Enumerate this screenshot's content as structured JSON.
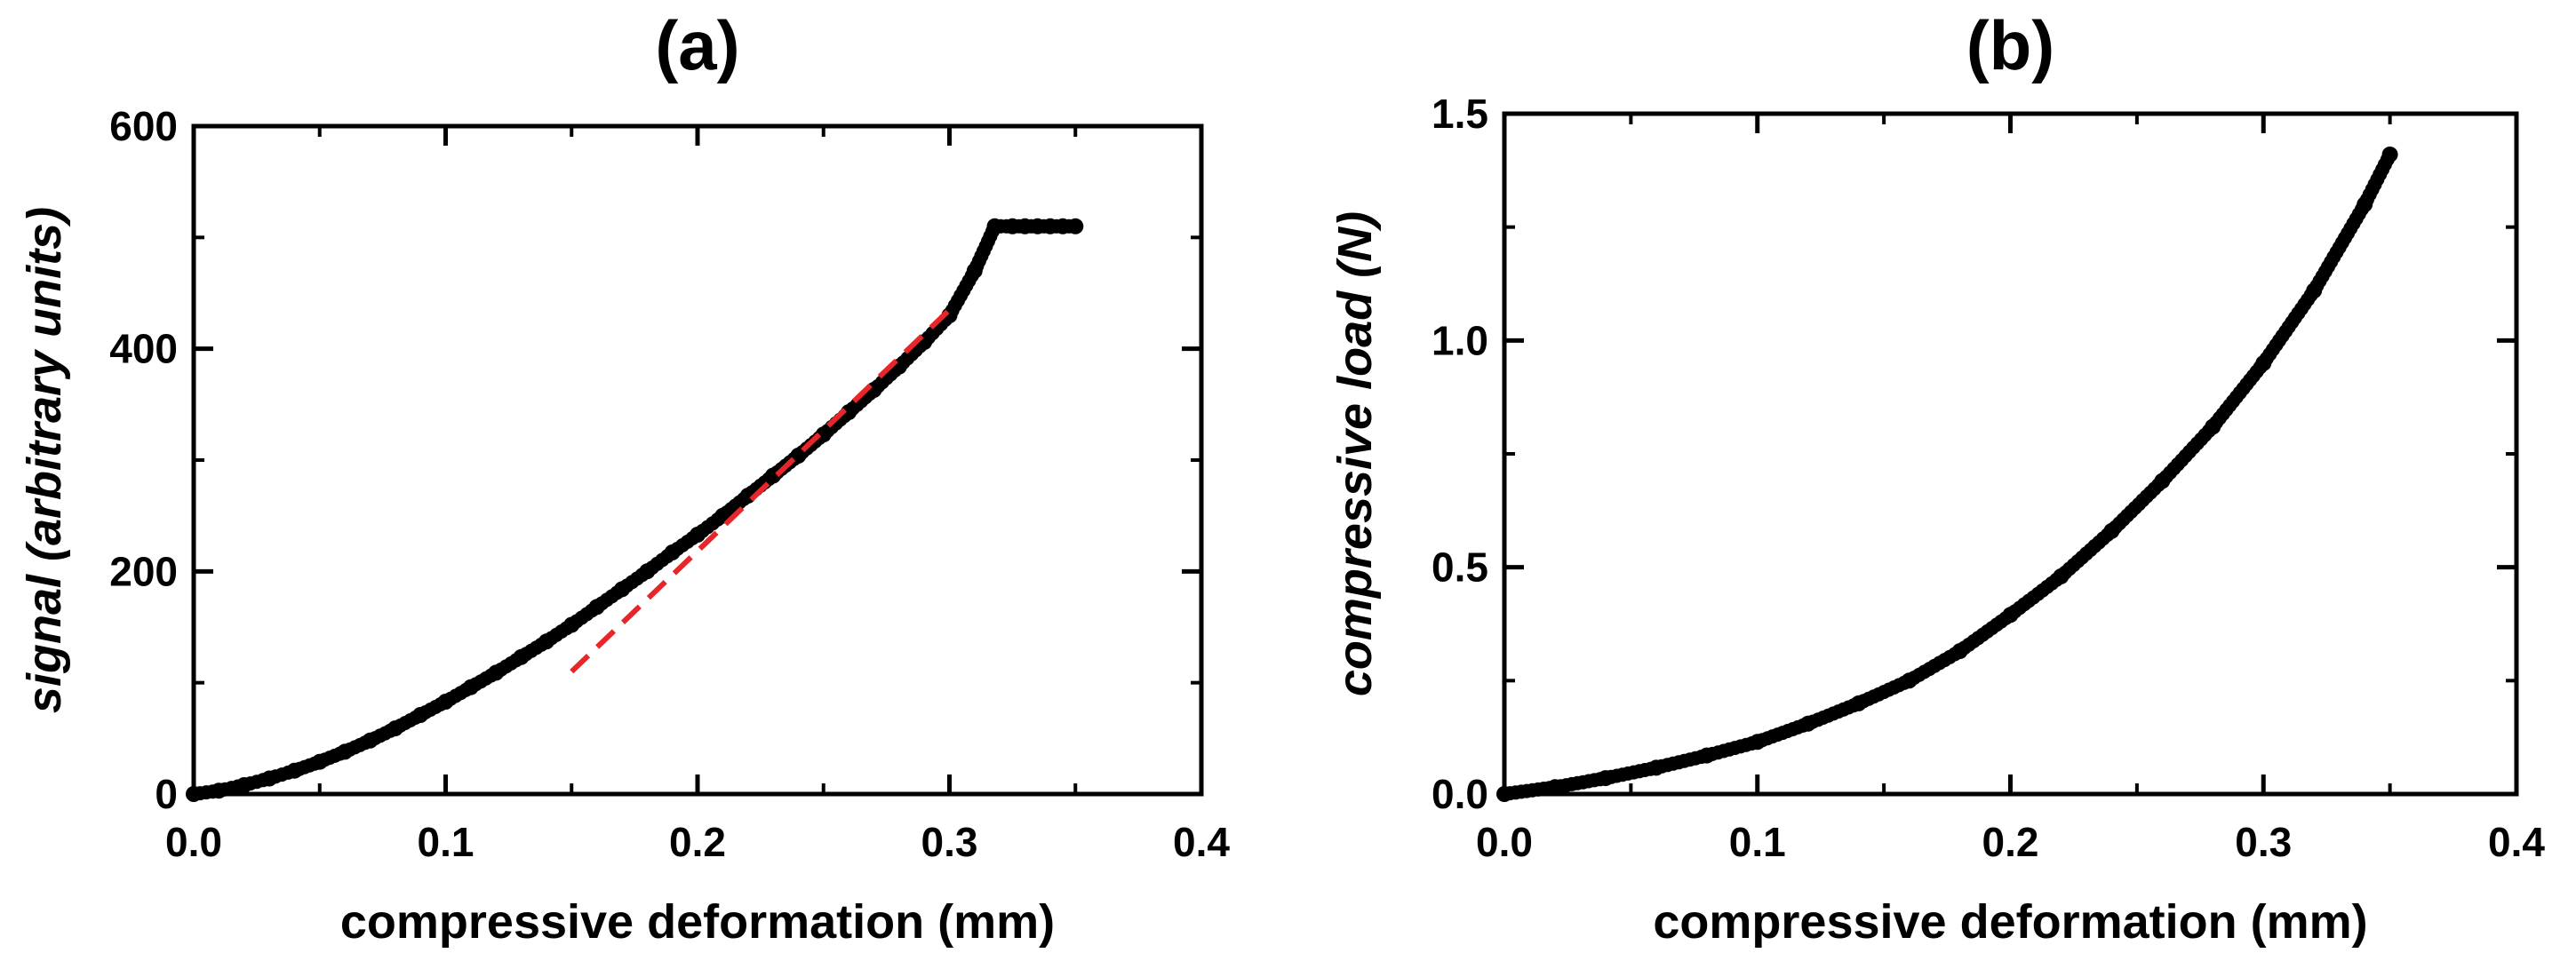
{
  "chart_data": [
    {
      "panel": "a",
      "type": "scatter",
      "title": "(a)",
      "xlabel": "compressive deformation (mm)",
      "ylabel": "signal",
      "ylabel_italic": "(arbitrary units)",
      "xlim": [
        0.0,
        0.4
      ],
      "ylim": [
        0,
        600
      ],
      "xticks": [
        0.0,
        0.1,
        0.2,
        0.3,
        0.4
      ],
      "xtick_labels": [
        "0.0",
        "0.1",
        "0.2",
        "0.3",
        "0.4"
      ],
      "yticks": [
        0,
        200,
        400,
        600
      ],
      "ytick_labels": [
        "0",
        "200",
        "400",
        "600"
      ],
      "grid": false,
      "series": [
        {
          "name": "signal",
          "style": "markers",
          "color": "#000000",
          "x": [
            0.0,
            0.01,
            0.02,
            0.03,
            0.04,
            0.05,
            0.06,
            0.07,
            0.08,
            0.09,
            0.1,
            0.11,
            0.12,
            0.13,
            0.14,
            0.15,
            0.16,
            0.17,
            0.18,
            0.19,
            0.2,
            0.21,
            0.22,
            0.23,
            0.24,
            0.25,
            0.26,
            0.27,
            0.28,
            0.29,
            0.3,
            0.31,
            0.318,
            0.325,
            0.33,
            0.335,
            0.34,
            0.345,
            0.35
          ],
          "y": [
            0,
            3,
            8,
            14,
            21,
            29,
            38,
            48,
            59,
            71,
            83,
            96,
            109,
            123,
            137,
            152,
            168,
            184,
            200,
            217,
            233,
            250,
            268,
            286,
            304,
            323,
            343,
            363,
            384,
            406,
            430,
            470,
            510,
            510,
            510,
            510,
            510,
            510,
            510
          ]
        },
        {
          "name": "linear fit",
          "style": "dashed",
          "color": "#e8262a",
          "x": [
            0.15,
            0.3
          ],
          "y": [
            110,
            435
          ]
        }
      ]
    },
    {
      "panel": "b",
      "type": "scatter",
      "title": "(b)",
      "xlabel": "compressive deformation (mm)",
      "ylabel": "compressive",
      "ylabel_italic": "load (N)",
      "xlim": [
        0.0,
        0.4
      ],
      "ylim": [
        0.0,
        1.5
      ],
      "xticks": [
        0.0,
        0.1,
        0.2,
        0.3,
        0.4
      ],
      "xtick_labels": [
        "0.0",
        "0.1",
        "0.2",
        "0.3",
        "0.4"
      ],
      "yticks": [
        0.0,
        0.5,
        1.0,
        1.5
      ],
      "ytick_labels": [
        "0.0",
        "0.5",
        "1.0",
        "1.5"
      ],
      "grid": false,
      "series": [
        {
          "name": "compressive load",
          "style": "markers",
          "color": "#000000",
          "x": [
            0.0,
            0.02,
            0.04,
            0.06,
            0.08,
            0.1,
            0.12,
            0.14,
            0.16,
            0.18,
            0.2,
            0.22,
            0.24,
            0.26,
            0.28,
            0.3,
            0.32,
            0.34,
            0.35
          ],
          "y": [
            0.0,
            0.015,
            0.035,
            0.058,
            0.085,
            0.115,
            0.155,
            0.2,
            0.25,
            0.315,
            0.395,
            0.48,
            0.58,
            0.69,
            0.81,
            0.95,
            1.11,
            1.3,
            1.41
          ]
        }
      ]
    }
  ]
}
